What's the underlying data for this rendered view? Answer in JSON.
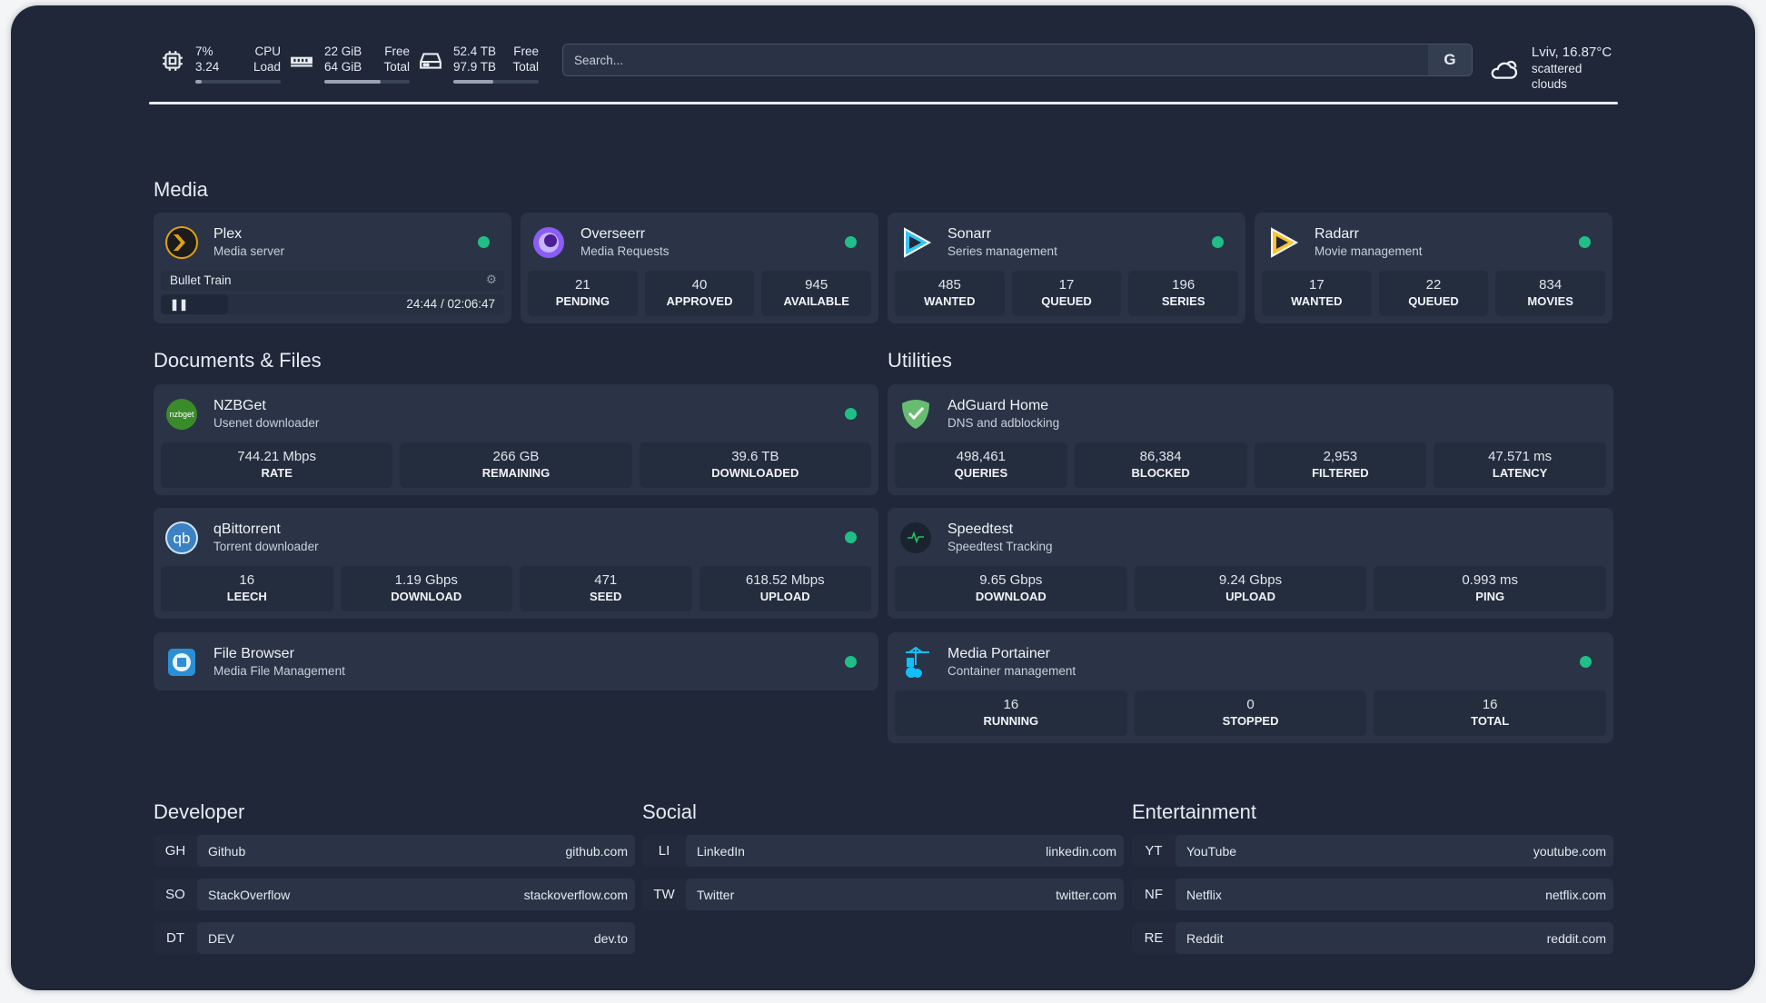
{
  "resources": {
    "cpu": {
      "icon": "cpu-icon",
      "value1": "7%",
      "value2": "3.24",
      "label1": "CPU",
      "label2": "Load",
      "percent": 7
    },
    "memory": {
      "icon": "memory-icon",
      "value1": "22 GiB",
      "value2": "64 GiB",
      "label1": "Free",
      "label2": "Total",
      "percent": 66
    },
    "disk": {
      "icon": "disk-icon",
      "value1": "52.4 TB",
      "value2": "97.9 TB",
      "label1": "Free",
      "label2": "Total",
      "percent": 47
    }
  },
  "search": {
    "placeholder": "Search...",
    "provider_label": "G"
  },
  "weather": {
    "icon": "cloud-sun-icon",
    "location_temp": "Lviv, 16.87°C",
    "condition": "scattered clouds"
  },
  "sections": {
    "media": "Media",
    "documents": "Documents & Files",
    "utilities": "Utilities",
    "developer": "Developer",
    "social": "Social",
    "entertainment": "Entertainment"
  },
  "colors": {
    "status_online": "#1fbf86",
    "background": "#1f2739",
    "card": "#2a3446"
  },
  "media": [
    {
      "name": "Plex",
      "desc": "Media server",
      "icon": "plex-icon",
      "status": "online",
      "now_playing": {
        "title": "Bullet Train",
        "time": "24:44 / 02:06:47",
        "progress": 0.195,
        "state": "paused"
      }
    },
    {
      "name": "Overseerr",
      "desc": "Media Requests",
      "icon": "overseerr-icon",
      "status": "online",
      "stats": [
        {
          "value": "21",
          "label": "PENDING"
        },
        {
          "value": "40",
          "label": "APPROVED"
        },
        {
          "value": "945",
          "label": "AVAILABLE"
        }
      ]
    },
    {
      "name": "Sonarr",
      "desc": "Series management",
      "icon": "sonarr-icon",
      "status": "online",
      "stats": [
        {
          "value": "485",
          "label": "WANTED"
        },
        {
          "value": "17",
          "label": "QUEUED"
        },
        {
          "value": "196",
          "label": "SERIES"
        }
      ]
    },
    {
      "name": "Radarr",
      "desc": "Movie management",
      "icon": "radarr-icon",
      "status": "online",
      "stats": [
        {
          "value": "17",
          "label": "WANTED"
        },
        {
          "value": "22",
          "label": "QUEUED"
        },
        {
          "value": "834",
          "label": "MOVIES"
        }
      ]
    }
  ],
  "documents": [
    {
      "name": "NZBGet",
      "desc": "Usenet downloader",
      "icon": "nzbget-icon",
      "icon_text": "nzbget",
      "status": "online",
      "stats": [
        {
          "value": "744.21 Mbps",
          "label": "RATE"
        },
        {
          "value": "266 GB",
          "label": "REMAINING"
        },
        {
          "value": "39.6 TB",
          "label": "DOWNLOADED"
        }
      ]
    },
    {
      "name": "qBittorrent",
      "desc": "Torrent downloader",
      "icon": "qbittorrent-icon",
      "icon_text": "qb",
      "status": "online",
      "stats": [
        {
          "value": "16",
          "label": "LEECH"
        },
        {
          "value": "1.19 Gbps",
          "label": "DOWNLOAD"
        },
        {
          "value": "471",
          "label": "SEED"
        },
        {
          "value": "618.52 Mbps",
          "label": "UPLOAD"
        }
      ]
    },
    {
      "name": "File Browser",
      "desc": "Media File Management",
      "icon": "file-browser-icon",
      "status": "online"
    }
  ],
  "utilities": [
    {
      "name": "AdGuard Home",
      "desc": "DNS and adblocking",
      "icon": "adguard-icon",
      "stats": [
        {
          "value": "498,461",
          "label": "QUERIES"
        },
        {
          "value": "86,384",
          "label": "BLOCKED"
        },
        {
          "value": "2,953",
          "label": "FILTERED"
        },
        {
          "value": "47.571 ms",
          "label": "LATENCY"
        }
      ]
    },
    {
      "name": "Speedtest",
      "desc": "Speedtest Tracking",
      "icon": "speedtest-icon",
      "stats": [
        {
          "value": "9.65 Gbps",
          "label": "DOWNLOAD"
        },
        {
          "value": "9.24 Gbps",
          "label": "UPLOAD"
        },
        {
          "value": "0.993 ms",
          "label": "PING"
        }
      ]
    },
    {
      "name": "Media Portainer",
      "desc": "Container management",
      "icon": "portainer-icon",
      "status": "online",
      "stats": [
        {
          "value": "16",
          "label": "RUNNING"
        },
        {
          "value": "0",
          "label": "STOPPED"
        },
        {
          "value": "16",
          "label": "TOTAL"
        }
      ]
    }
  ],
  "bookmarks": {
    "developer": [
      {
        "abbr": "GH",
        "name": "Github",
        "url": "github.com"
      },
      {
        "abbr": "SO",
        "name": "StackOverflow",
        "url": "stackoverflow.com"
      },
      {
        "abbr": "DT",
        "name": "DEV",
        "url": "dev.to"
      }
    ],
    "social": [
      {
        "abbr": "LI",
        "name": "LinkedIn",
        "url": "linkedin.com"
      },
      {
        "abbr": "TW",
        "name": "Twitter",
        "url": "twitter.com"
      }
    ],
    "entertainment": [
      {
        "abbr": "YT",
        "name": "YouTube",
        "url": "youtube.com"
      },
      {
        "abbr": "NF",
        "name": "Netflix",
        "url": "netflix.com"
      },
      {
        "abbr": "RE",
        "name": "Reddit",
        "url": "reddit.com"
      }
    ]
  }
}
